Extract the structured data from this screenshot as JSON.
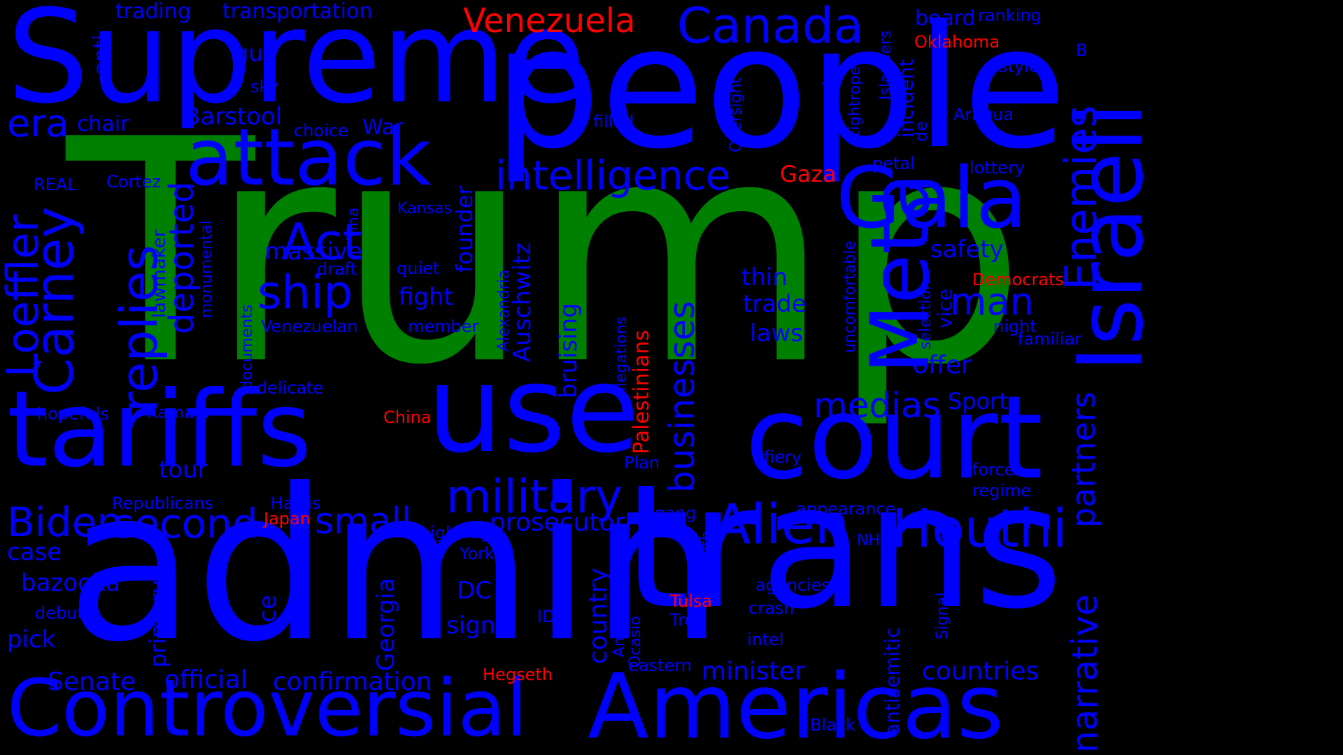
{
  "colors": {
    "background": "#000000",
    "primary": "#0000ff",
    "accent": "#ff0000",
    "highlight": "#008000"
  },
  "words": [
    {
      "text": "Trump",
      "color": "highlight"
    },
    {
      "text": "admin",
      "color": "primary"
    },
    {
      "text": "people",
      "color": "primary"
    },
    {
      "text": "trans",
      "color": "primary"
    },
    {
      "text": "Supreme",
      "color": "primary"
    },
    {
      "text": "use",
      "color": "primary"
    },
    {
      "text": "tariffs",
      "color": "primary"
    },
    {
      "text": "court",
      "color": "primary"
    },
    {
      "text": "Controversial",
      "color": "primary"
    },
    {
      "text": "Americas",
      "color": "primary"
    },
    {
      "text": "Israeli",
      "color": "primary"
    },
    {
      "text": "attack",
      "color": "primary"
    },
    {
      "text": "Meta",
      "color": "primary"
    },
    {
      "text": "Gala",
      "color": "primary"
    },
    {
      "text": "Alien",
      "color": "primary"
    },
    {
      "text": "Houthi",
      "color": "primary"
    },
    {
      "text": "military",
      "color": "primary"
    },
    {
      "text": "Canada",
      "color": "primary"
    },
    {
      "text": "intelligence",
      "color": "primary"
    },
    {
      "text": "Carney",
      "color": "primary"
    },
    {
      "text": "replies",
      "color": "primary"
    },
    {
      "text": "Loeffler",
      "color": "primary"
    },
    {
      "text": "Enemies",
      "color": "primary"
    },
    {
      "text": "narrative",
      "color": "primary"
    },
    {
      "text": "partners",
      "color": "primary"
    },
    {
      "text": "Act",
      "color": "primary"
    },
    {
      "text": "ship",
      "color": "primary"
    },
    {
      "text": "Biden",
      "color": "primary"
    },
    {
      "text": "second",
      "color": "primary"
    },
    {
      "text": "small",
      "color": "primary"
    },
    {
      "text": "deported",
      "color": "primary"
    },
    {
      "text": "businesses",
      "color": "primary"
    },
    {
      "text": "medias",
      "color": "primary"
    },
    {
      "text": "man",
      "color": "primary"
    },
    {
      "text": "era",
      "color": "primary"
    },
    {
      "text": "Venezuela",
      "color": "accent"
    },
    {
      "text": "prosecutor",
      "color": "primary"
    },
    {
      "text": "Barstool",
      "color": "primary"
    },
    {
      "text": "Auschwitz",
      "color": "primary"
    },
    {
      "text": "bruising",
      "color": "primary"
    },
    {
      "text": "countries",
      "color": "primary"
    },
    {
      "text": "minister",
      "color": "primary"
    },
    {
      "text": "confirmation",
      "color": "primary"
    },
    {
      "text": "official",
      "color": "primary"
    },
    {
      "text": "Senate",
      "color": "primary"
    },
    {
      "text": "country",
      "color": "primary"
    },
    {
      "text": "massive",
      "color": "primary"
    },
    {
      "text": "fight",
      "color": "primary"
    },
    {
      "text": "safety",
      "color": "primary"
    },
    {
      "text": "offer",
      "color": "primary"
    },
    {
      "text": "trade",
      "color": "primary"
    },
    {
      "text": "thin",
      "color": "primary"
    },
    {
      "text": "laws",
      "color": "primary"
    },
    {
      "text": "sign",
      "color": "primary"
    },
    {
      "text": "DC",
      "color": "primary"
    },
    {
      "text": "Georgia",
      "color": "primary"
    },
    {
      "text": "tour",
      "color": "primary"
    },
    {
      "text": "bazooka",
      "color": "primary"
    },
    {
      "text": "case",
      "color": "primary"
    },
    {
      "text": "pick",
      "color": "primary"
    },
    {
      "text": "primary",
      "color": "primary"
    },
    {
      "text": "ice",
      "color": "primary"
    },
    {
      "text": "Sports",
      "color": "primary"
    },
    {
      "text": "founder",
      "color": "primary"
    },
    {
      "text": "War",
      "color": "primary"
    },
    {
      "text": "chair",
      "color": "primary"
    },
    {
      "text": "gun",
      "color": "primary"
    },
    {
      "text": "anti",
      "color": "primary"
    },
    {
      "text": "trading",
      "color": "primary"
    },
    {
      "text": "transportation",
      "color": "primary"
    },
    {
      "text": "board",
      "color": "primary"
    },
    {
      "text": "ranking",
      "color": "primary"
    },
    {
      "text": "Oklahoma",
      "color": "accent"
    },
    {
      "text": "style",
      "color": "primary"
    },
    {
      "text": "B",
      "color": "primary"
    },
    {
      "text": "Aragua",
      "color": "primary"
    },
    {
      "text": "lottery",
      "color": "primary"
    },
    {
      "text": "petal",
      "color": "primary"
    },
    {
      "text": "Gaza",
      "color": "accent"
    },
    {
      "text": "filled",
      "color": "primary"
    },
    {
      "text": "Oversight",
      "color": "primary"
    },
    {
      "text": "surprise",
      "color": "primary"
    },
    {
      "text": "tightrope",
      "color": "primary"
    },
    {
      "text": "Islanders",
      "color": "primary"
    },
    {
      "text": "incident",
      "color": "primary"
    },
    {
      "text": "de",
      "color": "primary"
    },
    {
      "text": "Democrats",
      "color": "accent"
    },
    {
      "text": "night",
      "color": "primary"
    },
    {
      "text": "familiar",
      "color": "primary"
    },
    {
      "text": "vice",
      "color": "primary"
    },
    {
      "text": "selection",
      "color": "primary"
    },
    {
      "text": "uncomfortable",
      "color": "primary"
    },
    {
      "text": "Palestinians",
      "color": "accent"
    },
    {
      "text": "allegations",
      "color": "primary"
    },
    {
      "text": "Alexandria",
      "color": "primary"
    },
    {
      "text": "Kansas",
      "color": "primary"
    },
    {
      "text": "quiet",
      "color": "primary"
    },
    {
      "text": "member",
      "color": "primary"
    },
    {
      "text": "draft",
      "color": "primary"
    },
    {
      "text": "Tina",
      "color": "primary"
    },
    {
      "text": "Venezuelan",
      "color": "primary"
    },
    {
      "text": "documents",
      "color": "primary"
    },
    {
      "text": "delicate",
      "color": "primary"
    },
    {
      "text": "choice",
      "color": "primary"
    },
    {
      "text": "sky",
      "color": "primary"
    },
    {
      "text": "REAL",
      "color": "primary"
    },
    {
      "text": "Cortez",
      "color": "primary"
    },
    {
      "text": "lawmaker",
      "color": "primary"
    },
    {
      "text": "monumental",
      "color": "primary"
    },
    {
      "text": "hopefuls",
      "color": "primary"
    },
    {
      "text": "Kamala",
      "color": "primary"
    },
    {
      "text": "China",
      "color": "accent"
    },
    {
      "text": "Republicans",
      "color": "primary"
    },
    {
      "text": "Harris",
      "color": "primary"
    },
    {
      "text": "Japan",
      "color": "accent"
    },
    {
      "text": "highway",
      "color": "primary"
    },
    {
      "text": "York",
      "color": "primary"
    },
    {
      "text": "debut",
      "color": "primary"
    },
    {
      "text": "Plan",
      "color": "primary"
    },
    {
      "text": "fiery",
      "color": "primary"
    },
    {
      "text": "gang",
      "color": "primary"
    },
    {
      "text": "appearance",
      "color": "primary"
    },
    {
      "text": "forces",
      "color": "primary"
    },
    {
      "text": "regime",
      "color": "primary"
    },
    {
      "text": "NHL",
      "color": "primary"
    },
    {
      "text": "Smith",
      "color": "primary"
    },
    {
      "text": "antisemitic",
      "color": "primary"
    },
    {
      "text": "agencies",
      "color": "primary"
    },
    {
      "text": "crash",
      "color": "primary"
    },
    {
      "text": "intel",
      "color": "primary"
    },
    {
      "text": "Signal",
      "color": "primary"
    },
    {
      "text": "Tulsa",
      "color": "accent"
    },
    {
      "text": "Tren",
      "color": "primary"
    },
    {
      "text": "ID",
      "color": "primary"
    },
    {
      "text": "Americans",
      "color": "primary"
    },
    {
      "text": "Ocasio",
      "color": "primary"
    },
    {
      "text": "eastern",
      "color": "primary"
    },
    {
      "text": "Hegseth",
      "color": "accent"
    },
    {
      "text": "Black",
      "color": "primary"
    }
  ]
}
